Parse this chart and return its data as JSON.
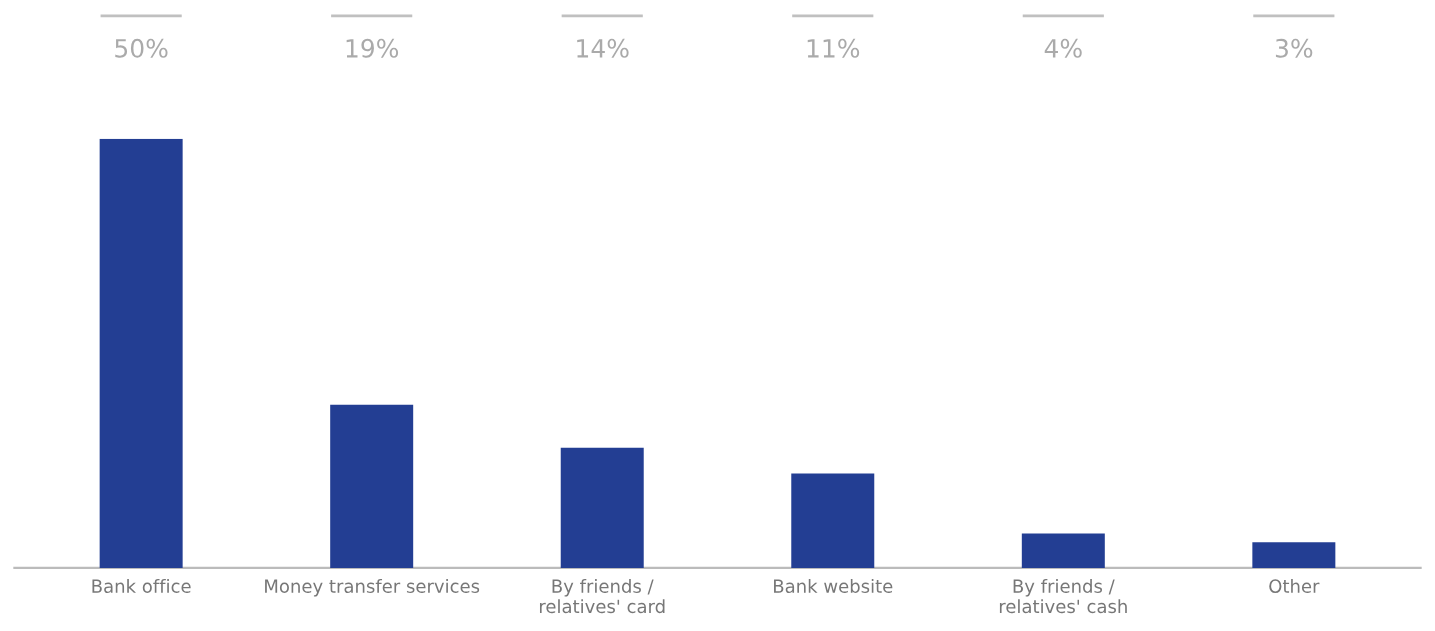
{
  "chart_data": {
    "type": "bar",
    "categories": [
      "Bank office",
      "Money transfer services",
      "By friends /\nrelatives' card",
      "Bank website",
      "By friends /\nrelatives' cash",
      "Other"
    ],
    "values": [
      50,
      19,
      14,
      11,
      4,
      3
    ],
    "color": "#233e93",
    "value_labels": [
      "50%",
      "19%",
      "14%",
      "11%",
      "4%",
      "3%"
    ],
    "grid": false,
    "legend": false
  }
}
